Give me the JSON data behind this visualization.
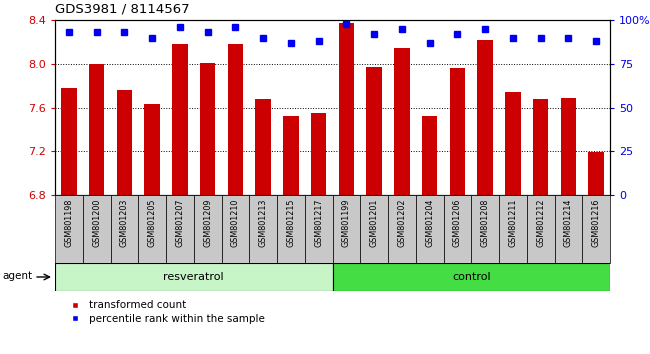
{
  "title": "GDS3981 / 8114567",
  "samples": [
    "GSM801198",
    "GSM801200",
    "GSM801203",
    "GSM801205",
    "GSM801207",
    "GSM801209",
    "GSM801210",
    "GSM801213",
    "GSM801215",
    "GSM801217",
    "GSM801199",
    "GSM801201",
    "GSM801202",
    "GSM801204",
    "GSM801206",
    "GSM801208",
    "GSM801211",
    "GSM801212",
    "GSM801214",
    "GSM801216"
  ],
  "transformed_counts": [
    7.78,
    8.0,
    7.76,
    7.63,
    8.18,
    8.01,
    8.18,
    7.68,
    7.52,
    7.55,
    8.37,
    7.97,
    8.14,
    7.52,
    7.96,
    8.22,
    7.74,
    7.68,
    7.69,
    7.19
  ],
  "percentile_ranks": [
    93,
    93,
    93,
    90,
    96,
    93,
    96,
    90,
    87,
    88,
    98,
    92,
    95,
    87,
    92,
    95,
    90,
    90,
    90,
    88
  ],
  "groups": [
    "resveratrol",
    "resveratrol",
    "resveratrol",
    "resveratrol",
    "resveratrol",
    "resveratrol",
    "resveratrol",
    "resveratrol",
    "resveratrol",
    "resveratrol",
    "control",
    "control",
    "control",
    "control",
    "control",
    "control",
    "control",
    "control",
    "control",
    "control"
  ],
  "resveratrol_color": "#c8f5c8",
  "control_color": "#44dd44",
  "bar_color": "#CC0000",
  "dot_color": "#0000EE",
  "ylim_left": [
    6.8,
    8.4
  ],
  "ylim_right": [
    0,
    100
  ],
  "yticks_left": [
    6.8,
    7.2,
    7.6,
    8.0,
    8.4
  ],
  "yticks_right": [
    0,
    25,
    50,
    75,
    100
  ],
  "grid_values": [
    7.2,
    7.6,
    8.0
  ],
  "agent_label": "agent",
  "resveratrol_label": "resveratrol",
  "control_label": "control",
  "legend_bar_label": "transformed count",
  "legend_dot_label": "percentile rank within the sample",
  "bar_width": 0.55,
  "xtick_box_color": "#c8c8c8",
  "plot_bg_color": "#ffffff",
  "fig_bg_color": "#ffffff"
}
